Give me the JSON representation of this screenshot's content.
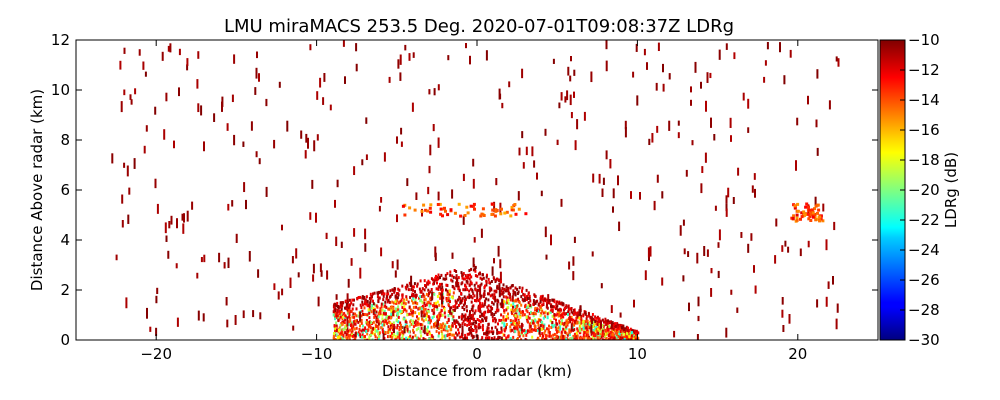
{
  "chart_data": {
    "type": "heatmap",
    "title": "LMU miraMACS 253.5 Deg. 2020-07-01T09:08:37Z  LDRg",
    "xlabel": "Distance from radar (km)",
    "ylabel": "Distance Above radar  (km)",
    "xlim": [
      -25,
      25
    ],
    "ylim": [
      0,
      12
    ],
    "xticks": [
      "−20",
      "−10",
      "0",
      "10",
      "20"
    ],
    "xtick_values": [
      -20,
      -10,
      0,
      10,
      20
    ],
    "yticks": [
      "0",
      "2",
      "4",
      "6",
      "8",
      "10",
      "12"
    ],
    "ytick_values": [
      0,
      2,
      4,
      6,
      8,
      10,
      12
    ],
    "colorbar": {
      "label": "LDRg (dB)",
      "range": [
        -30,
        -10
      ],
      "colormap": "jet",
      "ticks": [
        "−10",
        "−12",
        "−14",
        "−16",
        "−18",
        "−20",
        "−22",
        "−24",
        "−26",
        "−28",
        "−30"
      ],
      "tick_values": [
        -10,
        -12,
        -14,
        -16,
        -18,
        -20,
        -22,
        -24,
        -26,
        -28,
        -30
      ]
    },
    "regions": [
      {
        "name": "dense low-level echo",
        "x_range": [
          -9,
          10
        ],
        "y_range": [
          0,
          2.8
        ],
        "ldr_range": [
          -22,
          -10
        ]
      },
      {
        "name": "sparse scan streaks",
        "x_range": [
          -23,
          22.5
        ],
        "y_range": [
          0.2,
          12
        ],
        "ldr_range": [
          -11,
          -10
        ]
      },
      {
        "name": "layer near 5.2 km",
        "x_range": [
          -5,
          3
        ],
        "y_range": [
          5.0,
          5.5
        ],
        "ldr_range": [
          -16,
          -12
        ]
      },
      {
        "name": "patch at x 20 km",
        "x_range": [
          19.5,
          21.5
        ],
        "y_range": [
          4.8,
          5.5
        ],
        "ldr_range": [
          -16,
          -12
        ]
      }
    ]
  }
}
